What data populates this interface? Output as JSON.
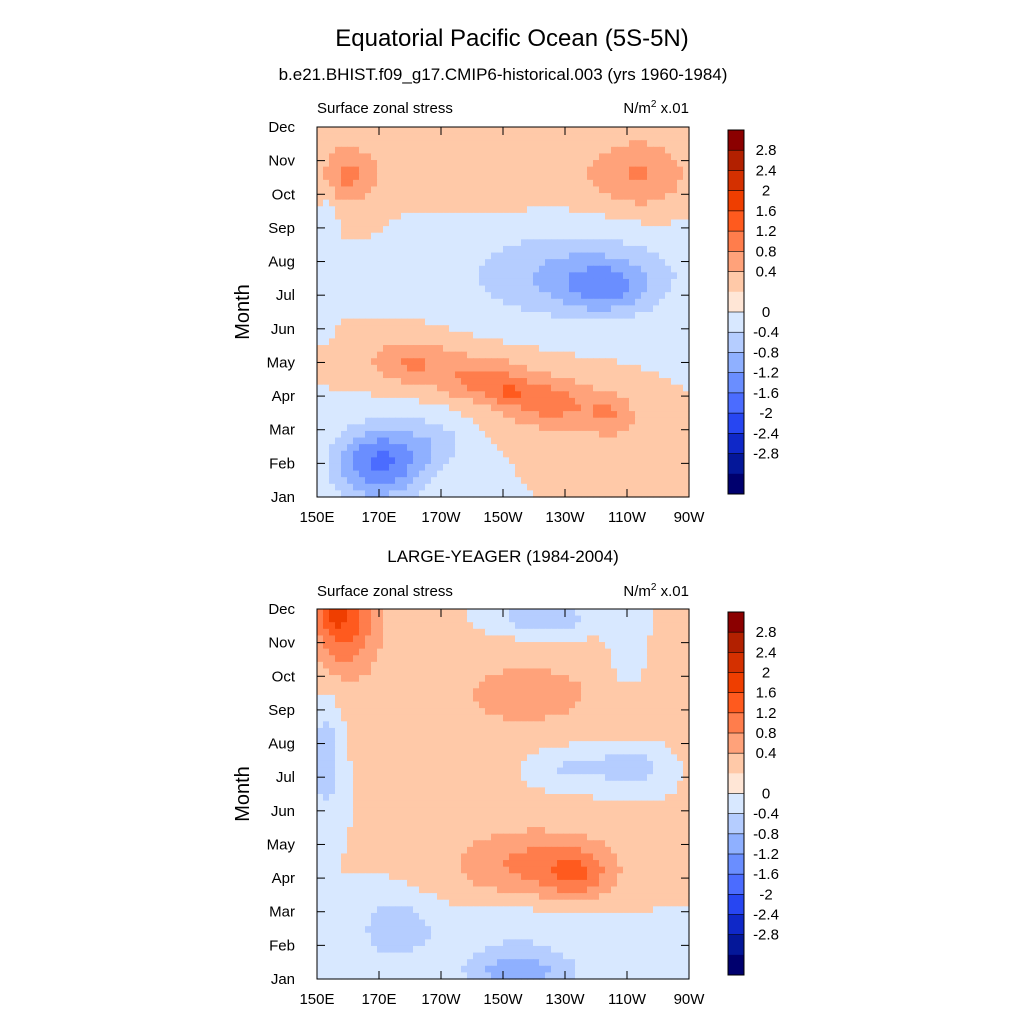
{
  "figure": {
    "title": "Equatorial Pacific Ocean (5S-5N)"
  },
  "chart_data": [
    {
      "type": "heatmap",
      "title": "b.e21.BHIST.f09_g17.CMIP6-historical.003 (yrs 1960-1984)",
      "left_label": "Surface zonal stress",
      "units_label": {
        "base": "N/m",
        "sup": "2",
        "tail": " x.01"
      },
      "ylabel": "Month",
      "x_ticks": [
        "150E",
        "170E",
        "170W",
        "150W",
        "130W",
        "110W",
        "90W"
      ],
      "x_lon": [
        150,
        170,
        190,
        210,
        230,
        250,
        270
      ],
      "y_ticks": [
        "Jan",
        "Feb",
        "Mar",
        "Apr",
        "May",
        "Jun",
        "Jul",
        "Aug",
        "Sep",
        "Oct",
        "Nov",
        "Dec"
      ],
      "xlim_lon": [
        150,
        270
      ],
      "ylim_month": [
        1,
        12
      ],
      "blobs": [
        {
          "lon": 153,
          "month": 8.9,
          "rx": 3,
          "ry": 1.8,
          "amp": -0.3
        },
        {
          "lon": 160,
          "month": 10.6,
          "rx": 10,
          "ry": 0.9,
          "amp": 0.9
        },
        {
          "lon": 254,
          "month": 10.6,
          "rx": 16,
          "ry": 1.1,
          "amp": 0.8
        },
        {
          "lon": 215,
          "month": 10.6,
          "rx": 25,
          "ry": 0.9,
          "amp": 0.3
        },
        {
          "lon": 233,
          "month": 7.6,
          "rx": 34,
          "ry": 1.3,
          "amp": -0.9
        },
        {
          "lon": 243,
          "month": 7.2,
          "rx": 13,
          "ry": 0.7,
          "amp": -0.8
        },
        {
          "lon": 180,
          "month": 5.0,
          "rx": 14,
          "ry": 0.7,
          "amp": 0.8
        },
        {
          "lon": 203,
          "month": 4.5,
          "rx": 14,
          "ry": 0.7,
          "amp": 0.9
        },
        {
          "lon": 225,
          "month": 3.8,
          "rx": 15,
          "ry": 0.8,
          "amp": 1.0
        },
        {
          "lon": 245,
          "month": 3.4,
          "rx": 9,
          "ry": 0.7,
          "amp": 0.7
        },
        {
          "lon": 212,
          "month": 4.1,
          "rx": 5,
          "ry": 0.35,
          "amp": 0.5
        },
        {
          "lon": 170,
          "month": 2.0,
          "rx": 14,
          "ry": 1.1,
          "amp": -1.7
        },
        {
          "lon": 188,
          "month": 2.6,
          "rx": 11,
          "ry": 0.9,
          "amp": -0.5
        }
      ],
      "colorbar": {
        "labels": [
          "2.8",
          "2.4",
          "2",
          "1.6",
          "1.2",
          "0.8",
          "0.4",
          "0",
          "-0.4",
          "-0.8",
          "-1.2",
          "-1.6",
          "-2",
          "-2.4",
          "-2.8"
        ],
        "colors_top_to_bottom": [
          "#8b0000",
          "#b22000",
          "#d43000",
          "#ef3e00",
          "#ff5a1e",
          "#ff7d4c",
          "#ffa27a",
          "#ffc9a8",
          "#ffe6d6",
          "#d8e8ff",
          "#b5cdff",
          "#8fb0ff",
          "#6a8eff",
          "#4b6cff",
          "#2746f2",
          "#0f28c8",
          "#041799",
          "#00006e"
        ]
      }
    },
    {
      "type": "heatmap",
      "title": "LARGE-YEAGER (1984-2004)",
      "left_label": "Surface zonal stress",
      "units_label": {
        "base": "N/m",
        "sup": "2",
        "tail": " x.01"
      },
      "ylabel": "Month",
      "x_ticks": [
        "150E",
        "170E",
        "170W",
        "150W",
        "130W",
        "110W",
        "90W"
      ],
      "x_lon": [
        150,
        170,
        190,
        210,
        230,
        250,
        270
      ],
      "y_ticks": [
        "Jan",
        "Feb",
        "Mar",
        "Apr",
        "May",
        "Jun",
        "Jul",
        "Aug",
        "Sep",
        "Oct",
        "Nov",
        "Dec"
      ],
      "xlim_lon": [
        150,
        270
      ],
      "ylim_month": [
        1,
        12
      ],
      "blobs": [
        {
          "lon": 159,
          "month": 11.6,
          "rx": 10,
          "ry": 1.4,
          "amp": 1.4
        },
        {
          "lon": 155,
          "month": 11.9,
          "rx": 5,
          "ry": 0.5,
          "amp": 0.5
        },
        {
          "lon": 205,
          "month": 9.2,
          "rx": 50,
          "ry": 2.3,
          "amp": 0.3
        },
        {
          "lon": 220,
          "month": 9.5,
          "rx": 16,
          "ry": 0.7,
          "amp": 0.5
        },
        {
          "lon": 223,
          "month": 11.7,
          "rx": 17,
          "ry": 0.5,
          "amp": -0.8
        },
        {
          "lon": 250,
          "month": 11.0,
          "rx": 5,
          "ry": 1.2,
          "amp": -0.4
        },
        {
          "lon": 233,
          "month": 7.3,
          "rx": 14,
          "ry": 0.6,
          "amp": -0.6
        },
        {
          "lon": 252,
          "month": 7.3,
          "rx": 9,
          "ry": 0.6,
          "amp": -0.7
        },
        {
          "lon": 153,
          "month": 7.6,
          "rx": 5,
          "ry": 1.6,
          "amp": -0.8
        },
        {
          "lon": 220,
          "month": 4.4,
          "rx": 27,
          "ry": 1.1,
          "amp": 0.9
        },
        {
          "lon": 234,
          "month": 4.1,
          "rx": 10,
          "ry": 0.7,
          "amp": 0.7
        },
        {
          "lon": 215,
          "month": 2.3,
          "rx": 30,
          "ry": 1.0,
          "amp": -0.4
        },
        {
          "lon": 175,
          "month": 2.5,
          "rx": 11,
          "ry": 0.9,
          "amp": -0.7
        },
        {
          "lon": 215,
          "month": 1.2,
          "rx": 17,
          "ry": 0.5,
          "amp": -1.0
        }
      ],
      "colorbar": {
        "labels": [
          "2.8",
          "2.4",
          "2",
          "1.6",
          "1.2",
          "0.8",
          "0.4",
          "0",
          "-0.4",
          "-0.8",
          "-1.2",
          "-1.6",
          "-2",
          "-2.4",
          "-2.8"
        ],
        "colors_top_to_bottom": [
          "#8b0000",
          "#b22000",
          "#d43000",
          "#ef3e00",
          "#ff5a1e",
          "#ff7d4c",
          "#ffa27a",
          "#ffc9a8",
          "#ffe6d6",
          "#d8e8ff",
          "#b5cdff",
          "#8fb0ff",
          "#6a8eff",
          "#4b6cff",
          "#2746f2",
          "#0f28c8",
          "#041799",
          "#00006e"
        ]
      }
    }
  ]
}
